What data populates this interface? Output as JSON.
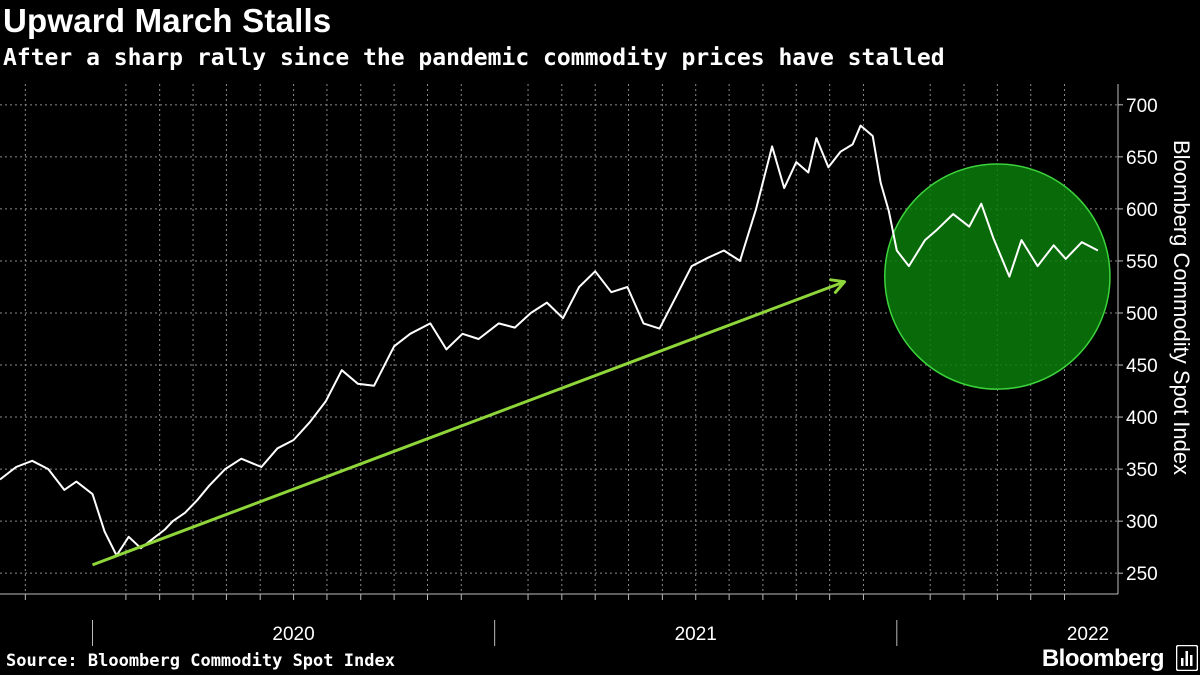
{
  "header": {
    "title": "Upward March Stalls",
    "subtitle": "After a sharp rally since the pandemic commodity prices have stalled"
  },
  "footer": {
    "source": "Source: Bloomberg Commodity Spot Index",
    "brand": "Bloomberg"
  },
  "chart_data": {
    "type": "line",
    "title": "Upward March Stalls",
    "subtitle": "After a sharp rally since the pandemic commodity prices have stalled",
    "ylabel": "Bloomberg Commodity Spot Index",
    "xlabel": "",
    "ylim": [
      230,
      720
    ],
    "yticks": [
      250,
      300,
      350,
      400,
      450,
      500,
      550,
      600,
      650,
      700
    ],
    "xlim": [
      2019.77,
      2022.55
    ],
    "xtick_labels": [
      {
        "label": "2020",
        "x": 2020.5
      },
      {
        "label": "2021",
        "x": 2021.5
      },
      {
        "label": "2022",
        "x": 2022.5
      }
    ],
    "year_boundaries": [
      2020.0,
      2021.0,
      2022.0
    ],
    "month_ticks": [
      2019.833,
      2020.083,
      2020.167,
      2020.25,
      2020.333,
      2020.417,
      2020.5,
      2020.583,
      2020.667,
      2020.75,
      2020.833,
      2020.917,
      2021.083,
      2021.167,
      2021.25,
      2021.333,
      2021.417,
      2021.5,
      2021.583,
      2021.667,
      2021.75,
      2021.833,
      2021.917,
      2022.083,
      2022.167,
      2022.25,
      2022.333,
      2022.417
    ],
    "grid": true,
    "line_color": "#ffffff",
    "series": [
      {
        "name": "Bloomberg Commodity Spot Index",
        "x": [
          2019.77,
          2019.81,
          2019.85,
          2019.89,
          2019.93,
          2019.96,
          2020.0,
          2020.03,
          2020.06,
          2020.09,
          2020.12,
          2020.15,
          2020.18,
          2020.2,
          2020.23,
          2020.26,
          2020.29,
          2020.33,
          2020.37,
          2020.42,
          2020.46,
          2020.5,
          2020.54,
          2020.58,
          2020.62,
          2020.66,
          2020.7,
          2020.75,
          2020.79,
          2020.84,
          2020.88,
          2020.92,
          2020.96,
          2021.01,
          2021.05,
          2021.09,
          2021.13,
          2021.17,
          2021.21,
          2021.25,
          2021.29,
          2021.33,
          2021.37,
          2021.41,
          2021.45,
          2021.49,
          2021.53,
          2021.57,
          2021.61,
          2021.65,
          2021.69,
          2021.72,
          2021.75,
          2021.78,
          2021.8,
          2021.83,
          2021.86,
          2021.89,
          2021.91,
          2021.94,
          2021.96,
          2021.98,
          2022.0,
          2022.03,
          2022.07,
          2022.1,
          2022.14,
          2022.18,
          2022.21,
          2022.24,
          2022.28,
          2022.31,
          2022.35,
          2022.39,
          2022.42,
          2022.46,
          2022.5
        ],
        "values": [
          340,
          352,
          358,
          350,
          330,
          338,
          326,
          290,
          267,
          285,
          274,
          283,
          292,
          300,
          308,
          320,
          334,
          350,
          360,
          352,
          370,
          378,
          395,
          415,
          445,
          432,
          430,
          468,
          480,
          490,
          465,
          480,
          475,
          490,
          486,
          500,
          510,
          495,
          525,
          540,
          520,
          525,
          490,
          485,
          515,
          545,
          553,
          560,
          550,
          600,
          660,
          620,
          645,
          635,
          668,
          640,
          655,
          662,
          680,
          670,
          625,
          598,
          560,
          545,
          570,
          580,
          595,
          583,
          605,
          572,
          535,
          570,
          545,
          565,
          552,
          568,
          560
        ]
      }
    ],
    "annotations": [
      {
        "type": "trend-arrow",
        "color": "#8fd63b",
        "from": {
          "x": 2020.0,
          "y": 258
        },
        "to": {
          "x": 2021.87,
          "y": 530
        }
      },
      {
        "type": "highlight-circle",
        "color": "#0a7d0a",
        "center": {
          "x": 2022.25,
          "y": 535
        },
        "radius_years": 0.28
      }
    ]
  }
}
